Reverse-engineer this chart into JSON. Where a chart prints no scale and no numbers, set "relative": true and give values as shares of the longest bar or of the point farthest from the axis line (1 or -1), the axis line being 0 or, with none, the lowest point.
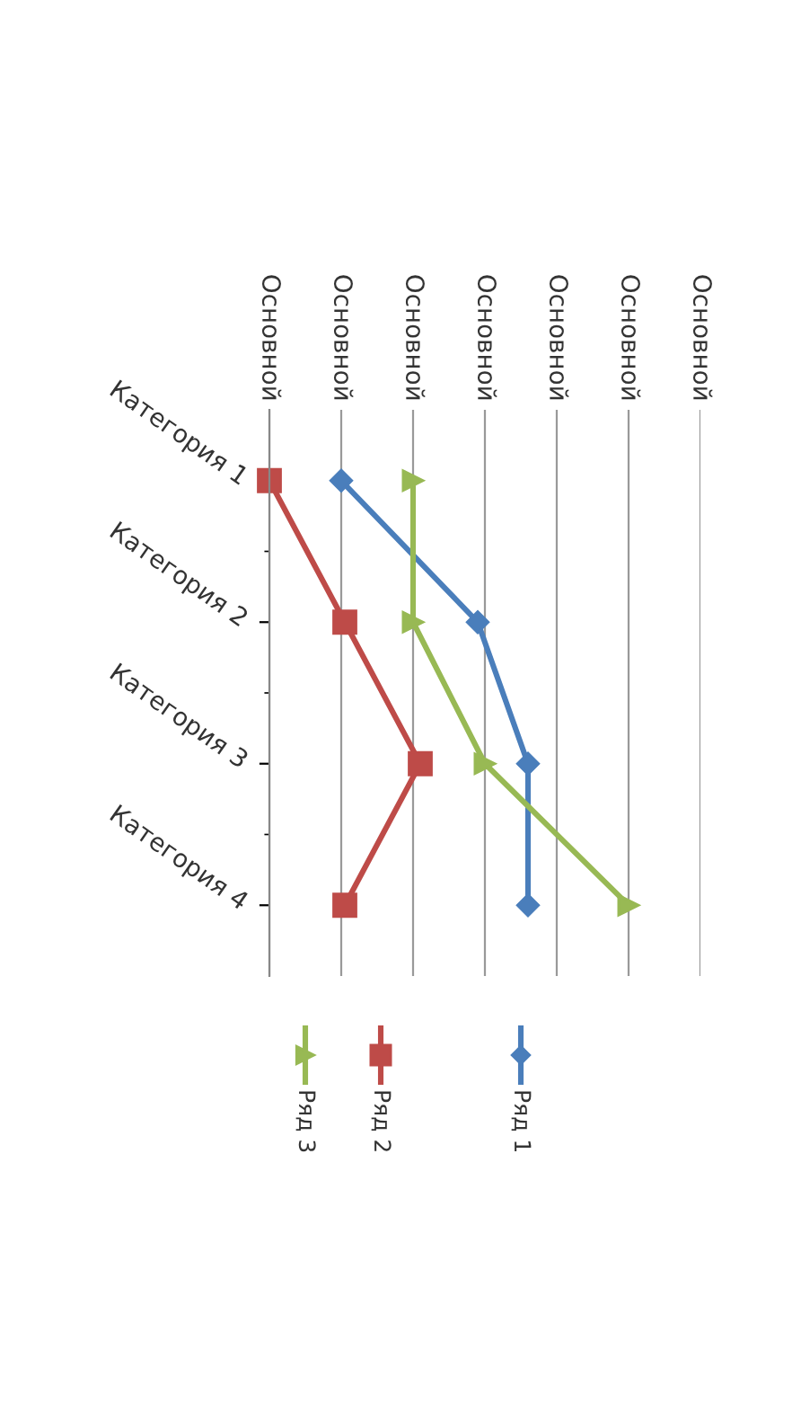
{
  "chart_data": {
    "type": "line",
    "relative": true,
    "orientation": "horizontal",
    "categories": [
      "Категория 1",
      "Категория 2",
      "Категория 3",
      "Категория 4"
    ],
    "xlim": [
      0,
      1.2
    ],
    "annotations": [
      "Основной",
      "Основной",
      "Основной",
      "Основной",
      "Основной",
      "Основной",
      "Основной"
    ],
    "grid": "x",
    "legend": "bottom",
    "line_style": "solid",
    "series": [
      {
        "name": "Ряд 1",
        "color": "#4a7ebb",
        "marker": "diamond",
        "values": [
          0.2,
          0.58,
          0.72,
          0.72
        ]
      },
      {
        "name": "Ряд 2",
        "color": "#be4b48",
        "marker": "square",
        "values": [
          0,
          0.21,
          0.42,
          0.21
        ]
      },
      {
        "name": "Ряд 3",
        "color": "#98b954",
        "marker": "triangle",
        "values": [
          0.4,
          0.4,
          0.6,
          1.0
        ]
      }
    ]
  }
}
